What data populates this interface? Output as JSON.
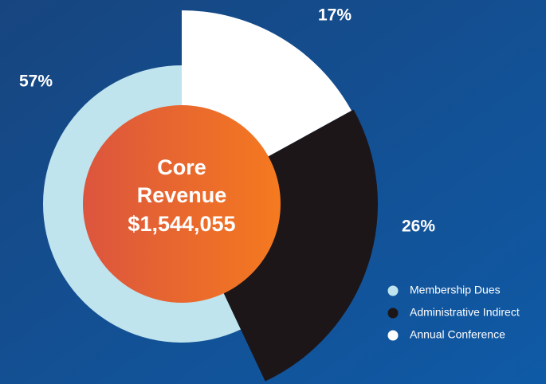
{
  "chart_data": {
    "type": "pie",
    "categories": [
      "Membership Dues",
      "Administrative Indirect",
      "Annual Conference"
    ],
    "values": [
      57,
      26,
      17
    ],
    "value_labels": [
      "57%",
      "26%",
      "17%"
    ],
    "colors": [
      "#bfe4ee",
      "#1c1619",
      "#ffffff"
    ],
    "direction": "counterclockwise",
    "center_text": [
      "Core",
      "Revenue",
      "$1,544,055"
    ],
    "legend": "lower right"
  }
}
